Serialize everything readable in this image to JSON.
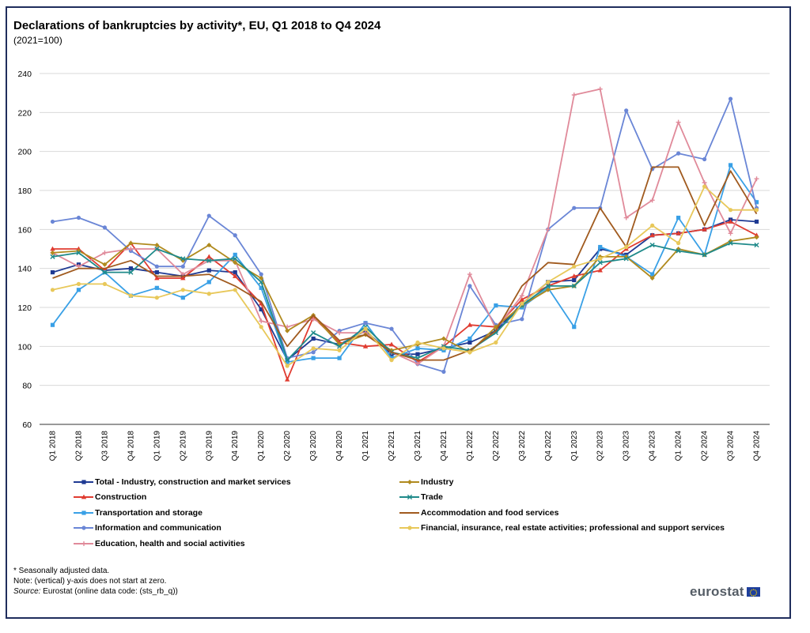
{
  "title": "Declarations of bankruptcies by activity*, EU, Q1 2018 to Q4 2024",
  "subtitle": "(2021=100)",
  "notes": {
    "line1": "* Seasonally adjusted data.",
    "line2": "Note: (vertical) y-axis does not start at zero.",
    "source_label": "Source:",
    "source_text": " Eurostat (online data code: (sts_rb_q))"
  },
  "logo": {
    "text": "eurostat",
    "icon": "eu-flag-icon"
  },
  "chart_data": {
    "type": "line",
    "ylim": [
      60,
      240
    ],
    "yticks": [
      60,
      80,
      100,
      120,
      140,
      160,
      180,
      200,
      220,
      240
    ],
    "grid": true,
    "legend_placement": "bottom",
    "categories": [
      "Q1 2018",
      "Q2 2018",
      "Q3 2018",
      "Q4 2018",
      "Q1 2019",
      "Q2 2019",
      "Q3 2019",
      "Q4 2019",
      "Q1 2020",
      "Q2 2020",
      "Q3 2020",
      "Q4 2020",
      "Q1 2021",
      "Q2 2021",
      "Q3 2021",
      "Q4 2021",
      "Q1 2022",
      "Q2 2022",
      "Q3 2022",
      "Q4 2022",
      "Q1 2023",
      "Q2 2023",
      "Q3 2023",
      "Q4 2023",
      "Q1 2024",
      "Q2 2024",
      "Q3 2024",
      "Q4 2024"
    ],
    "series": [
      {
        "name": "Total - Industry, construction and market services",
        "color": "#1f3a93",
        "marker": "square",
        "values": [
          138,
          142,
          139,
          140,
          138,
          136,
          139,
          138,
          119,
          93,
          104,
          101,
          108,
          96,
          96,
          99,
          102,
          108,
          122,
          133,
          134,
          150,
          147,
          157,
          158,
          160,
          165,
          164
        ]
      },
      {
        "name": "Construction",
        "color": "#e03c31",
        "marker": "triangle",
        "values": [
          150,
          150,
          139,
          153,
          135,
          135,
          146,
          136,
          122,
          83,
          115,
          102,
          100,
          101,
          92,
          100,
          111,
          110,
          124,
          131,
          136,
          139,
          150,
          157,
          158,
          160,
          164,
          157
        ]
      },
      {
        "name": "Transportation and storage",
        "color": "#39a0e6",
        "marker": "square",
        "values": [
          111,
          129,
          138,
          126,
          130,
          125,
          133,
          147,
          130,
          92,
          94,
          94,
          112,
          94,
          99,
          98,
          104,
          121,
          120,
          130,
          110,
          151,
          146,
          137,
          166,
          147,
          193,
          174
        ]
      },
      {
        "name": "Information and communication",
        "color": "#6a86d6",
        "marker": "circle",
        "values": [
          164,
          166,
          161,
          149,
          141,
          141,
          167,
          157,
          137,
          94,
          97,
          108,
          112,
          109,
          91,
          87,
          131,
          111,
          114,
          160,
          171,
          171,
          221,
          191,
          199,
          196,
          227,
          171
        ]
      },
      {
        "name": "Education,  health and social activities",
        "color": "#e08a9a",
        "marker": "plus",
        "values": [
          148,
          141,
          148,
          150,
          150,
          137,
          144,
          144,
          113,
          110,
          114,
          107,
          107,
          97,
          91,
          100,
          137,
          109,
          126,
          160,
          229,
          232,
          166,
          175,
          215,
          184,
          158,
          186
        ]
      },
      {
        "name": "Industry",
        "color": "#b08a1e",
        "marker": "diamond",
        "values": [
          148,
          149,
          142,
          153,
          152,
          144,
          152,
          143,
          135,
          108,
          116,
          101,
          106,
          98,
          101,
          104,
          97,
          110,
          121,
          129,
          131,
          146,
          146,
          135,
          150,
          147,
          154,
          156
        ]
      },
      {
        "name": "Trade",
        "color": "#1f8a8a",
        "marker": "x",
        "values": [
          146,
          148,
          138,
          138,
          150,
          145,
          144,
          145,
          133,
          93,
          107,
          100,
          110,
          97,
          94,
          100,
          98,
          107,
          121,
          131,
          131,
          143,
          145,
          152,
          149,
          147,
          153,
          152
        ]
      },
      {
        "name": "Accommodation and food services",
        "color": "#a05a1e",
        "marker": "none",
        "values": [
          135,
          140,
          140,
          144,
          136,
          136,
          137,
          131,
          123,
          100,
          116,
          103,
          106,
          97,
          93,
          93,
          98,
          108,
          131,
          143,
          142,
          171,
          151,
          192,
          192,
          162,
          190,
          168
        ]
      },
      {
        "name": "Financial, insurance, real estate activities; professional and support services",
        "color": "#e8c85a",
        "marker": "circle",
        "values": [
          129,
          132,
          132,
          126,
          125,
          129,
          127,
          129,
          110,
          90,
          99,
          98,
          109,
          93,
          102,
          99,
          97,
          102,
          122,
          133,
          141,
          145,
          151,
          162,
          153,
          182,
          170,
          170
        ]
      }
    ]
  }
}
